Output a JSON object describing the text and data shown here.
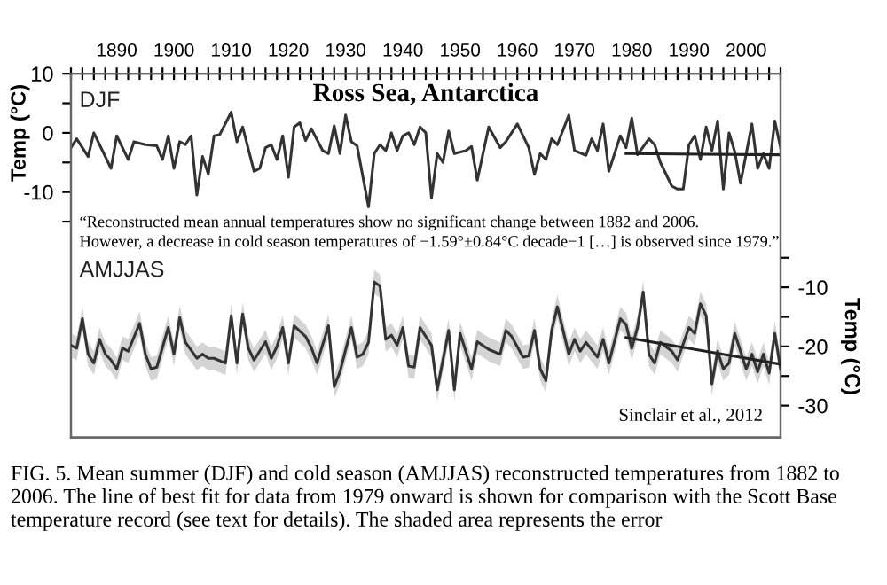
{
  "chart_data": {
    "type": "line",
    "title": "Ross Sea, Antarctica",
    "ylabel": "Temp (°C)",
    "y2label": "Temp (°C)",
    "annotations": [
      "“Reconstructed mean annual temperatures show no significant change between 1882 and 2006.\nHowever, a decrease in cold season temperatures of −1.59°±0.84°C decade−1 […] is observed since 1979.”",
      "Sinclair et al., 2012",
      "FIG. 5. Mean summer (DJF) and cold season (AMJJAS) reconstructed temperatures from 1882 to 2006. The line of best fit for data from 1979 onward is shown for comparison with the Scott Base temperature record (see text for details). The shaded area represents the error"
    ],
    "xlim": [
      1882,
      2006
    ],
    "xticks": [
      {
        "value": 1882,
        "label": null
      },
      {
        "value": 1884,
        "label": null
      },
      {
        "value": 1886,
        "label": null
      },
      {
        "value": 1888,
        "label": null
      },
      1890,
      {
        "value": 1892,
        "label": null
      },
      {
        "value": 1894,
        "label": null
      },
      {
        "value": 1896,
        "label": null
      },
      {
        "value": 1898,
        "label": null
      },
      1900,
      {
        "value": 1902,
        "label": null
      },
      {
        "value": 1904,
        "label": null
      },
      {
        "value": 1906,
        "label": null
      },
      {
        "value": 1908,
        "label": null
      },
      1910,
      {
        "value": 1912,
        "label": null
      },
      {
        "value": 1914,
        "label": null
      },
      {
        "value": 1916,
        "label": null
      },
      {
        "value": 1918,
        "label": null
      },
      1920,
      {
        "value": 1922,
        "label": null
      },
      {
        "value": 1924,
        "label": null
      },
      {
        "value": 1926,
        "label": null
      },
      {
        "value": 1928,
        "label": null
      },
      1930,
      {
        "value": 1932,
        "label": null
      },
      {
        "value": 1934,
        "label": null
      },
      {
        "value": 1936,
        "label": null
      },
      {
        "value": 1938,
        "label": null
      },
      1940,
      {
        "value": 1942,
        "label": null
      },
      {
        "value": 1944,
        "label": null
      },
      {
        "value": 1946,
        "label": null
      },
      {
        "value": 1948,
        "label": null
      },
      1950,
      {
        "value": 1952,
        "label": null
      },
      {
        "value": 1954,
        "label": null
      },
      {
        "value": 1956,
        "label": null
      },
      {
        "value": 1958,
        "label": null
      },
      1960,
      {
        "value": 1962,
        "label": null
      },
      {
        "value": 1964,
        "label": null
      },
      {
        "value": 1966,
        "label": null
      },
      {
        "value": 1968,
        "label": null
      },
      1970,
      {
        "value": 1972,
        "label": null
      },
      {
        "value": 1974,
        "label": null
      },
      {
        "value": 1976,
        "label": null
      },
      {
        "value": 1978,
        "label": null
      },
      1980,
      {
        "value": 1982,
        "label": null
      },
      {
        "value": 1984,
        "label": null
      },
      {
        "value": 1986,
        "label": null
      },
      {
        "value": 1988,
        "label": null
      },
      1990,
      {
        "value": 1992,
        "label": null
      },
      {
        "value": 1994,
        "label": null
      },
      {
        "value": 1996,
        "label": null
      },
      {
        "value": 1998,
        "label": null
      },
      2000,
      {
        "value": 2002,
        "label": null
      },
      {
        "value": 2004,
        "label": null
      },
      {
        "value": 2006,
        "label": null
      }
    ],
    "ylim": [
      -51.5,
      10
    ],
    "yticks": [
      10,
      {
        "value": 5,
        "label": null
      },
      0,
      {
        "value": -5,
        "label": null
      },
      -10,
      {
        "value": -15,
        "label": null
      }
    ],
    "y2lim": [
      -35.4,
      26.1
    ],
    "y2ticks": [
      {
        "value": -5,
        "label": null
      },
      -10,
      {
        "value": -15,
        "label": null
      },
      -20,
      {
        "value": -25,
        "label": null
      },
      -30
    ],
    "grid": false,
    "legend": false,
    "series": [
      {
        "name": "DJF",
        "color": "#333333",
        "x": [
          1882,
          1883,
          1885,
          1886,
          1889,
          1890,
          1892,
          1893,
          1895,
          1897,
          1898,
          1899,
          1900,
          1901,
          1902,
          1903,
          1904,
          1905,
          1906,
          1907,
          1908,
          1910,
          1911,
          1912,
          1914,
          1915,
          1916,
          1917,
          1918,
          1919,
          1920,
          1921,
          1922,
          1923,
          1924,
          1926,
          1927,
          1928,
          1929,
          1930,
          1931,
          1932,
          1934,
          1935,
          1936,
          1937,
          1938,
          1939,
          1940,
          1941,
          1942,
          1943,
          1944,
          1945,
          1946,
          1947,
          1948,
          1949,
          1951,
          1952,
          1953,
          1955,
          1957,
          1958,
          1960,
          1962,
          1963,
          1964,
          1965,
          1966,
          1967,
          1969,
          1970,
          1972,
          1973,
          1974,
          1975,
          1976,
          1978,
          1979,
          1980,
          1981,
          1983,
          1984,
          1985,
          1987,
          1988,
          1989,
          1990,
          1991,
          1992,
          1993,
          1994,
          1995,
          1996,
          1997,
          1998,
          1999,
          2001,
          2002,
          2003,
          2004,
          2005,
          2006
        ],
        "values": [
          -2.5,
          -1,
          -4,
          0,
          -6,
          -0.5,
          -4.5,
          -1.5,
          -2,
          -2.2,
          -4.5,
          -0.5,
          -6,
          -1.5,
          -2,
          -0.5,
          -10.5,
          -4,
          -7,
          -0.5,
          -0.3,
          3.5,
          -1.5,
          1,
          -6.5,
          -6,
          -2.5,
          -2,
          -4.5,
          -0.5,
          -7.5,
          1,
          1.7,
          -1.3,
          0.7,
          -3,
          -3.5,
          1.2,
          -3.5,
          3,
          -1.5,
          -2.2,
          -12.5,
          -3.5,
          -2,
          -3,
          0,
          -3,
          -0.5,
          0,
          -2,
          1,
          0,
          -11,
          -3.5,
          -5,
          0.3,
          -3.5,
          -3,
          -2.3,
          -8,
          1,
          -2.5,
          -1.5,
          1.5,
          -2.5,
          -7,
          -3.5,
          -4.5,
          -1,
          -2,
          3,
          -3,
          -3.8,
          -1,
          -3,
          1.5,
          -6.5,
          -0.5,
          -2.5,
          2.5,
          -3.7,
          -1,
          -2,
          -5,
          -9,
          -9.5,
          -9.5,
          -2,
          -0.5,
          -4.5,
          1,
          -3,
          2,
          -9.5,
          0,
          -3.2,
          -8.5,
          1.5,
          -6,
          -3.5,
          -6,
          2,
          -2.5
        ]
      },
      {
        "color": "#222222",
        "x": [
          1979,
          2006
        ],
        "values": [
          -3.5,
          -3.7
        ]
      },
      {
        "name": "AMJJAS",
        "color": "#333333",
        "axis": "y2",
        "x": [
          1882,
          1883,
          1884,
          1885,
          1886,
          1887,
          1888,
          1889,
          1890,
          1891,
          1892,
          1894,
          1895,
          1896,
          1897,
          1899,
          1900,
          1901,
          1902,
          1904,
          1905,
          1906,
          1907,
          1909,
          1910,
          1911,
          1912,
          1913,
          1914,
          1916,
          1917,
          1918,
          1919,
          1920,
          1921,
          1923,
          1924,
          1925,
          1927,
          1928,
          1929,
          1931,
          1932,
          1933,
          1934,
          1935,
          1936,
          1937,
          1938,
          1939,
          1940,
          1941,
          1942,
          1943,
          1945,
          1946,
          1948,
          1949,
          1950,
          1952,
          1953,
          1955,
          1957,
          1958,
          1959,
          1961,
          1962,
          1963,
          1964,
          1965,
          1966,
          1967,
          1969,
          1970,
          1971,
          1972,
          1974,
          1975,
          1976,
          1978,
          1979,
          1980,
          1981,
          1982,
          1983,
          1984,
          1985,
          1987,
          1988,
          1990,
          1991,
          1992,
          1993,
          1994,
          1995,
          1996,
          1997,
          1998,
          2000,
          2001,
          2002,
          2003,
          2004,
          2005,
          2006
        ],
        "values": [
          -19.8,
          -20.3,
          -15.3,
          -21.3,
          -22.8,
          -18.8,
          -21.3,
          -22.3,
          -23.8,
          -20.3,
          -20.8,
          -16.1,
          -21.3,
          -23.8,
          -23.5,
          -16.8,
          -21.3,
          -15.1,
          -19.3,
          -22,
          -21.3,
          -22,
          -22,
          -22.8,
          -14.8,
          -22.8,
          -14.5,
          -20.3,
          -22.3,
          -19.2,
          -22,
          -20,
          -16.8,
          -22.8,
          -16.5,
          -18.3,
          -20.2,
          -22.8,
          -16.5,
          -26.8,
          -24.3,
          -16.8,
          -21.8,
          -21.3,
          -19.3,
          -9.1,
          -9.8,
          -18.8,
          -18.1,
          -19.8,
          -16.8,
          -23.3,
          -23.5,
          -16.8,
          -19.8,
          -27.3,
          -17.3,
          -27.3,
          -17.8,
          -23.8,
          -19.2,
          -20.5,
          -21.3,
          -17.3,
          -18.3,
          -21.8,
          -21.6,
          -17.3,
          -23.8,
          -25.8,
          -17.3,
          -13.3,
          -21.3,
          -18.8,
          -20.8,
          -19.3,
          -21.8,
          -18.8,
          -22.8,
          -15.3,
          -16.3,
          -20.3,
          -16.8,
          -10.8,
          -21.3,
          -22.8,
          -19.3,
          -20.8,
          -22.3,
          -16.8,
          -17.8,
          -12.8,
          -14.8,
          -26.3,
          -20.8,
          -23.8,
          -22.8,
          -17.8,
          -23.8,
          -21.3,
          -24.3,
          -21.3,
          -24.5,
          -17.8,
          -23.8
        ],
        "lower": [
          -21.8,
          -22.3,
          -17.3,
          -23.3,
          -24.8,
          -20.8,
          -23.3,
          -24.3,
          -25.8,
          -22.3,
          -22.8,
          -18.1,
          -23.3,
          -25.8,
          -25.5,
          -18.8,
          -23.3,
          -17.1,
          -21.3,
          -24,
          -23.3,
          -24,
          -24,
          -24.8,
          -16.8,
          -24.8,
          -16.5,
          -22.3,
          -24.3,
          -21.2,
          -24,
          -22,
          -18.8,
          -24.8,
          -18.5,
          -20.3,
          -22.2,
          -24.8,
          -18.5,
          -28.8,
          -26.3,
          -18.8,
          -23.8,
          -23.3,
          -21.3,
          -11.1,
          -11.8,
          -20.8,
          -20.1,
          -21.8,
          -18.8,
          -25.3,
          -25.5,
          -18.8,
          -21.8,
          -29.3,
          -19.3,
          -29.3,
          -19.8,
          -25.8,
          -21.2,
          -22.5,
          -23.3,
          -19.3,
          -20.3,
          -23.8,
          -23.6,
          -19.3,
          -25.8,
          -27.8,
          -19.3,
          -15.3,
          -23.3,
          -20.8,
          -22.8,
          -21.3,
          -23.8,
          -20.8,
          -24.8,
          -17.3,
          -18.3,
          -22.3,
          -18.8,
          -12.8,
          -23.3,
          -24.8,
          -21.3,
          -22.8,
          -24.3,
          -18.8,
          -19.8,
          -14.8,
          -16.8,
          -28.3,
          -22.8,
          -25.8,
          -24.8,
          -19.8,
          -25.8,
          -23.3,
          -26.3,
          -23.3,
          -26.5,
          -19.8,
          -25.8
        ],
        "upper": [
          -17.8,
          -18.3,
          -13.3,
          -19.3,
          -20.8,
          -16.8,
          -19.3,
          -20.3,
          -21.8,
          -18.3,
          -18.8,
          -14.1,
          -19.3,
          -21.8,
          -21.5,
          -14.8,
          -19.3,
          -13.1,
          -17.3,
          -20,
          -19.3,
          -20,
          -20,
          -20.8,
          -12.8,
          -20.8,
          -12.5,
          -18.3,
          -20.3,
          -17.2,
          -20,
          -18,
          -14.8,
          -20.8,
          -14.5,
          -16.3,
          -18.2,
          -20.8,
          -14.5,
          -24.8,
          -22.3,
          -14.8,
          -19.8,
          -19.3,
          -17.3,
          -7.1,
          -7.8,
          -16.8,
          -16.1,
          -17.8,
          -14.8,
          -21.3,
          -21.5,
          -14.8,
          -17.8,
          -25.3,
          -15.3,
          -25.3,
          -15.8,
          -21.8,
          -17.2,
          -18.5,
          -19.3,
          -15.3,
          -16.3,
          -19.8,
          -19.6,
          -15.3,
          -21.8,
          -23.8,
          -15.3,
          -11.3,
          -19.3,
          -16.8,
          -18.8,
          -17.3,
          -19.8,
          -16.8,
          -20.8,
          -13.3,
          -14.3,
          -18.3,
          -14.8,
          -8.8,
          -19.3,
          -20.8,
          -17.3,
          -18.8,
          -20.3,
          -14.8,
          -15.8,
          -10.8,
          -12.8,
          -24.3,
          -18.8,
          -21.8,
          -20.8,
          -15.8,
          -21.8,
          -19.3,
          -22.3,
          -19.3,
          -22.5,
          -15.8,
          -21.8
        ]
      },
      {
        "color": "#222222",
        "axis": "y2",
        "x": [
          1979,
          2006
        ],
        "values": [
          -18.5,
          -23.0
        ]
      }
    ]
  }
}
